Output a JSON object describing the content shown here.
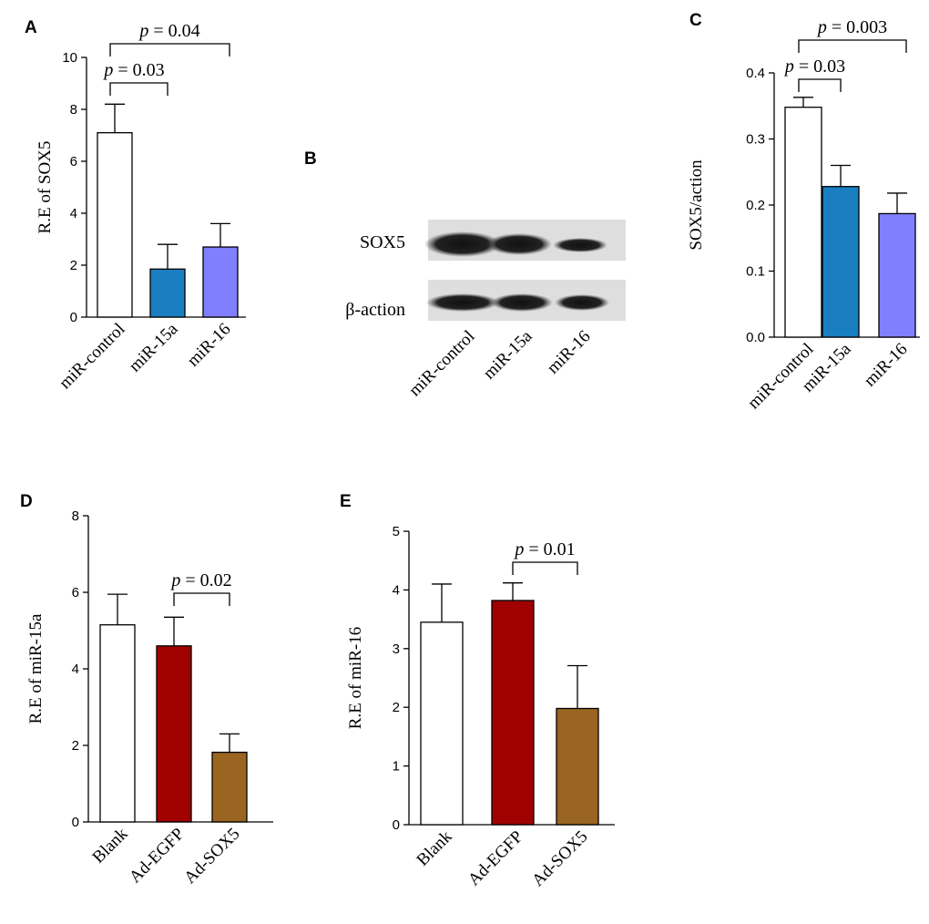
{
  "colors": {
    "white": "#ffffff",
    "blue": "#1a7fc1",
    "lavender": "#8080ff",
    "red": "#a00000",
    "brown": "#9a6520",
    "axis": "#000000"
  },
  "chart_data": [
    {
      "panel": "A",
      "type": "bar",
      "categories": [
        "miR-control",
        "miR-15a",
        "miR-16"
      ],
      "values": [
        7.1,
        1.85,
        2.7
      ],
      "errors": [
        1.1,
        0.95,
        0.9
      ],
      "ylabel": "R.E of SOX5",
      "ylim": [
        0,
        10
      ],
      "yticks": [
        "0",
        "2",
        "4",
        "6",
        "8",
        "10"
      ],
      "bar_colors": [
        "white",
        "blue",
        "lavender"
      ],
      "annotations": [
        {
          "text": "p = 0.03",
          "from": 0,
          "to": 1
        },
        {
          "text": "p = 0.04",
          "from": 0,
          "to": 2
        }
      ]
    },
    {
      "panel": "C",
      "type": "bar",
      "categories": [
        "miR-control",
        "miR-15a",
        "miR-16"
      ],
      "values": [
        0.348,
        0.228,
        0.187
      ],
      "errors": [
        0.015,
        0.032,
        0.031
      ],
      "ylabel": "SOX5/action",
      "ylim": [
        0,
        0.4
      ],
      "yticks": [
        "0.0",
        "0.1",
        "0.2",
        "0.3",
        "0.4"
      ],
      "bar_colors": [
        "white",
        "blue",
        "lavender"
      ],
      "annotations": [
        {
          "text": "p = 0.03",
          "from": 0,
          "to": 1
        },
        {
          "text": "p = 0.003",
          "from": 0,
          "to": 2
        }
      ]
    },
    {
      "panel": "D",
      "type": "bar",
      "categories": [
        "Blank",
        "Ad-EGFP",
        "Ad-SOX5"
      ],
      "values": [
        5.15,
        4.6,
        1.82
      ],
      "errors": [
        0.8,
        0.75,
        0.48
      ],
      "ylabel": "R.E of miR-15a",
      "ylim": [
        0,
        8
      ],
      "yticks": [
        "0",
        "2",
        "4",
        "6",
        "8"
      ],
      "bar_colors": [
        "white",
        "red",
        "brown"
      ],
      "annotations": [
        {
          "text": "p = 0.02",
          "from": 1,
          "to": 2
        }
      ]
    },
    {
      "panel": "E",
      "type": "bar",
      "categories": [
        "Blank",
        "Ad-EGFP",
        "Ad-SOX5"
      ],
      "values": [
        3.45,
        3.82,
        1.98
      ],
      "errors": [
        0.65,
        0.3,
        0.73
      ],
      "ylabel": "R.E of miR-16",
      "ylim": [
        0,
        5
      ],
      "yticks": [
        "0",
        "1",
        "2",
        "3",
        "4",
        "5"
      ],
      "bar_colors": [
        "white",
        "red",
        "brown"
      ],
      "annotations": [
        {
          "text": "p = 0.01",
          "from": 1,
          "to": 2
        }
      ]
    }
  ],
  "blot": {
    "panel": "B",
    "rows": [
      "SOX5",
      "β-action"
    ],
    "lanes": [
      "miR-control",
      "miR-15a",
      "miR-16"
    ]
  }
}
